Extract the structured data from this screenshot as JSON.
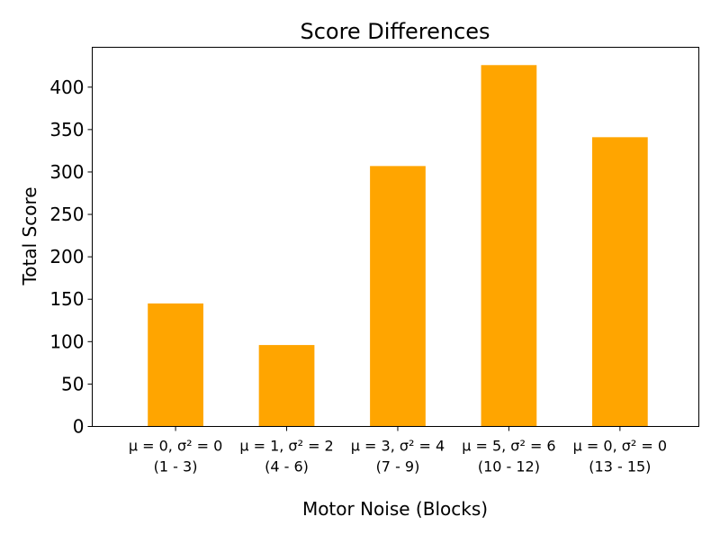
{
  "chart_data": {
    "type": "bar",
    "title": "Score Differences",
    "xlabel": "Motor Noise (Blocks)",
    "ylabel": "Total Score",
    "categories": [
      {
        "line1": "μ = 0, σ² = 0",
        "line2": "(1 - 3)"
      },
      {
        "line1": "μ = 1, σ² = 2",
        "line2": "(4 - 6)"
      },
      {
        "line1": "μ = 3, σ² = 4",
        "line2": "(7 - 9)"
      },
      {
        "line1": "μ = 5, σ² = 6",
        "line2": "(10 - 12)"
      },
      {
        "line1": "μ = 0, σ² = 0",
        "line2": "(13 - 15)"
      }
    ],
    "values": [
      145,
      96,
      307,
      426,
      341
    ],
    "ylim": [
      0,
      447
    ],
    "yticks": [
      0,
      50,
      100,
      150,
      200,
      250,
      300,
      350,
      400
    ],
    "grid": false,
    "bar_color": "#ffa500"
  }
}
